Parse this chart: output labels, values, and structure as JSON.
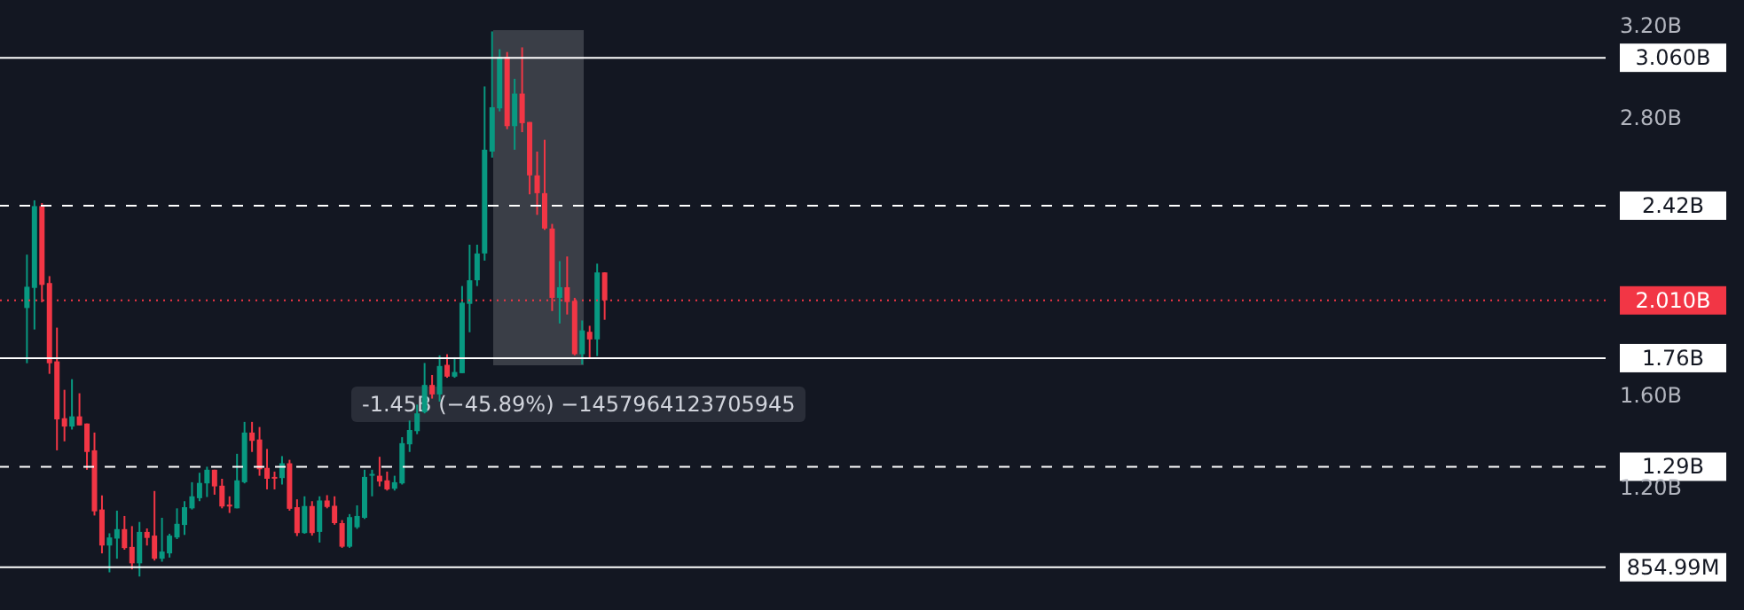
{
  "chart_data": {
    "type": "candlestick",
    "categories": [
      null,
      null,
      null,
      null,
      null,
      null,
      null,
      null,
      null,
      null,
      null,
      null,
      null,
      null,
      null,
      null,
      null,
      null,
      null,
      null,
      null,
      null,
      null,
      null,
      null,
      null,
      null,
      null,
      null,
      null,
      null,
      null,
      null,
      null,
      null,
      null,
      null,
      null,
      null,
      null,
      null,
      null,
      null,
      null,
      null,
      null,
      null,
      null,
      null,
      null,
      null,
      null,
      null,
      null,
      null,
      null,
      null,
      null,
      null,
      null,
      null,
      null,
      null,
      null,
      null,
      null,
      null,
      null,
      null,
      null,
      null,
      null,
      null,
      null,
      null,
      null,
      null,
      null,
      null,
      null,
      null,
      null,
      null,
      null,
      null,
      null,
      null,
      null,
      null,
      null,
      null,
      null,
      null,
      null,
      null,
      null,
      null,
      null,
      null,
      null,
      null,
      null,
      null,
      null,
      null,
      null,
      null,
      null,
      null,
      null,
      null,
      null,
      null,
      null,
      null,
      null,
      null,
      null,
      null,
      null,
      null,
      null,
      null,
      null,
      null,
      null,
      null,
      null,
      null,
      null,
      null,
      null,
      null,
      null,
      null,
      null,
      null,
      null,
      null,
      null,
      null,
      null,
      null,
      null,
      null,
      null,
      null,
      null,
      null,
      null,
      null,
      null,
      null,
      null,
      null,
      null,
      null,
      null,
      null,
      null,
      null,
      null,
      null,
      null,
      null,
      null,
      null,
      null,
      null,
      null,
      null,
      null,
      null,
      null,
      null,
      null,
      null,
      null,
      null,
      null,
      null,
      null,
      null,
      null,
      null,
      null,
      null,
      null,
      null,
      null,
      null,
      null,
      null,
      null,
      null,
      null,
      null,
      null,
      null,
      null,
      null,
      null,
      null,
      null,
      null,
      null,
      null,
      null,
      null,
      null,
      null,
      null,
      null,
      null
    ],
    "ohlc": [
      null,
      null,
      null,
      [
        1.977,
        2.208,
        1.738,
        2.069
      ],
      [
        2.064,
        2.443,
        1.884,
        2.418
      ],
      [
        2.418,
        2.431,
        2.002,
        2.077
      ],
      [
        2.085,
        2.115,
        1.692,
        1.738
      ],
      [
        1.746,
        1.892,
        1.361,
        1.495
      ],
      [
        1.5,
        1.623,
        1.4,
        1.464
      ],
      [
        1.464,
        1.669,
        1.451,
        1.508
      ],
      [
        1.508,
        1.608,
        1.469,
        1.469
      ],
      [
        1.477,
        1.477,
        1.277,
        1.354
      ],
      [
        1.361,
        1.438,
        1.079,
        1.097
      ],
      [
        1.105,
        1.166,
        0.915,
        0.949
      ],
      [
        0.949,
        1.002,
        0.833,
        0.984
      ],
      [
        0.979,
        1.1,
        0.892,
        1.02
      ],
      [
        1.02,
        1.077,
        0.931,
        0.938
      ],
      [
        0.943,
        1.033,
        0.846,
        0.872
      ],
      [
        0.872,
        1.051,
        0.815,
        1.008
      ],
      [
        1.008,
        1.023,
        0.949,
        0.982
      ],
      [
        0.992,
        1.185,
        0.884,
        0.892
      ],
      [
        0.892,
        1.069,
        0.879,
        0.923
      ],
      [
        0.915,
        1.0,
        0.897,
        0.992
      ],
      [
        0.984,
        1.11,
        0.977,
        1.043
      ],
      [
        1.038,
        1.141,
        0.995,
        1.115
      ],
      [
        1.11,
        1.223,
        1.105,
        1.162
      ],
      [
        1.154,
        1.264,
        1.141,
        1.22
      ],
      [
        1.218,
        1.29,
        1.159,
        1.277
      ],
      [
        1.277,
        1.277,
        1.169,
        1.205
      ],
      [
        1.208,
        1.238,
        1.11,
        1.118
      ],
      [
        1.126,
        1.162,
        1.09,
        1.118
      ],
      [
        1.11,
        1.346,
        1.11,
        1.231
      ],
      [
        1.223,
        1.484,
        1.218,
        1.438
      ],
      [
        1.438,
        1.484,
        1.354,
        1.402
      ],
      [
        1.408,
        1.462,
        1.251,
        1.279
      ],
      [
        1.285,
        1.367,
        1.192,
        1.238
      ],
      [
        1.246,
        1.269,
        1.192,
        1.241
      ],
      [
        1.241,
        1.336,
        1.213,
        1.305
      ],
      [
        1.305,
        1.32,
        1.1,
        1.108
      ],
      [
        1.115,
        1.149,
        0.99,
        1.003
      ],
      [
        1.003,
        1.162,
        1.0,
        1.12
      ],
      [
        1.12,
        1.141,
        0.992,
        1.003
      ],
      [
        1.008,
        1.162,
        0.962,
        1.144
      ],
      [
        1.144,
        1.167,
        1.11,
        1.116
      ],
      [
        1.121,
        1.162,
        1.039,
        1.046
      ],
      [
        1.046,
        1.059,
        0.939,
        0.944
      ],
      [
        0.944,
        1.085,
        0.939,
        1.072
      ],
      [
        1.028,
        1.123,
        1.021,
        1.077
      ],
      [
        1.069,
        1.277,
        1.064,
        1.246
      ],
      [
        1.251,
        1.277,
        1.162,
        1.259
      ],
      [
        1.251,
        1.333,
        1.205,
        1.226
      ],
      [
        1.231,
        1.269,
        1.187,
        1.192
      ],
      [
        1.195,
        1.251,
        1.187,
        1.223
      ],
      [
        1.218,
        1.418,
        1.213,
        1.392
      ],
      [
        1.387,
        1.49,
        1.354,
        1.449
      ],
      [
        1.444,
        1.559,
        1.431,
        1.521
      ],
      [
        1.526,
        1.739,
        1.521,
        1.644
      ],
      [
        1.644,
        1.687,
        1.585,
        1.603
      ],
      [
        1.603,
        1.772,
        1.572,
        1.726
      ],
      [
        1.731,
        1.777,
        1.675,
        1.68
      ],
      [
        1.68,
        1.764,
        1.675,
        1.7
      ],
      [
        1.695,
        2.072,
        1.695,
        2.0
      ],
      [
        1.995,
        2.251,
        1.872,
        2.097
      ],
      [
        2.097,
        2.251,
        2.072,
        2.213
      ],
      [
        2.213,
        2.936,
        2.182,
        2.662
      ],
      [
        2.654,
        3.174,
        2.628,
        2.846
      ],
      [
        2.841,
        3.097,
        2.828,
        3.064
      ],
      [
        3.064,
        3.085,
        2.751,
        2.764
      ],
      [
        2.764,
        2.969,
        2.662,
        2.905
      ],
      [
        2.905,
        3.105,
        2.738,
        2.777
      ],
      [
        2.782,
        2.782,
        2.469,
        2.551
      ],
      [
        2.551,
        2.654,
        2.38,
        2.474
      ],
      [
        2.474,
        2.705,
        2.315,
        2.321
      ],
      [
        2.321,
        2.341,
        1.964,
        2.021
      ],
      [
        2.021,
        2.18,
        1.91,
        2.067
      ],
      [
        2.067,
        2.2,
        1.949,
        2.003
      ],
      [
        2.008,
        2.021,
        1.772,
        1.777
      ],
      [
        1.777,
        1.923,
        1.733,
        1.88
      ],
      [
        1.874,
        1.9,
        1.756,
        1.841
      ],
      [
        1.841,
        2.169,
        1.769,
        2.131
      ],
      [
        2.131,
        2.131,
        1.926,
        2.01
      ],
      null,
      null,
      null,
      null,
      null,
      null,
      null,
      null,
      null,
      null,
      null,
      null,
      null,
      null,
      null,
      null,
      null,
      null,
      null,
      null,
      null,
      null,
      null,
      null,
      null,
      null,
      null,
      null,
      null,
      null,
      null,
      null,
      null,
      null,
      null,
      null,
      null,
      null,
      null,
      null,
      null,
      null,
      null,
      null,
      null,
      null,
      null,
      null,
      null,
      null,
      null,
      null,
      null,
      null,
      null,
      null,
      null,
      null,
      null,
      null,
      null,
      null,
      null,
      null,
      null,
      null,
      null,
      null,
      null,
      null,
      null,
      null,
      null,
      null,
      null,
      null,
      null,
      null,
      null,
      null,
      null,
      null,
      null,
      null,
      null,
      null,
      null,
      null,
      null,
      null,
      null,
      null,
      null,
      null,
      null,
      null,
      null,
      null,
      null,
      null,
      null,
      null,
      null,
      null,
      null,
      null,
      null,
      null,
      null,
      null,
      null,
      null,
      null,
      null,
      null,
      null,
      null,
      null,
      null,
      null,
      null,
      null,
      null,
      null,
      null,
      null,
      null,
      null,
      null,
      null,
      null,
      null,
      null
    ],
    "colors": [
      null,
      null,
      null,
      "#089981",
      "#089981",
      "#f23645",
      "#f23645",
      "#f23645",
      "#f23645",
      "#089981",
      "#f23645",
      "#f23645",
      "#f23645",
      "#f23645",
      "#089981",
      "#089981",
      "#f23645",
      "#f23645",
      "#089981",
      "#f23645",
      "#f23645",
      "#089981",
      "#089981",
      "#089981",
      "#089981",
      "#089981",
      "#089981",
      "#089981",
      "#f23645",
      "#f23645",
      "#f23645",
      "#089981",
      "#089981",
      "#f23645",
      "#f23645",
      "#f23645",
      "#f23645",
      "#089981",
      "#f23645",
      "#f23645",
      "#089981",
      "#f23645",
      "#089981",
      "#f23645",
      "#f23645",
      "#f23645",
      "#089981",
      "#089981",
      "#089981",
      "#089981",
      "#f23645",
      "#f23645",
      "#089981",
      "#089981",
      "#089981",
      "#089981",
      "#089981",
      "#f23645",
      "#089981",
      "#f23645",
      "#089981",
      "#089981",
      "#089981",
      "#089981",
      "#089981",
      "#089981",
      "#089981",
      "#f23645",
      "#089981",
      "#f23645",
      "#f23645",
      "#f23645",
      "#f23645",
      "#f23645",
      "#089981",
      "#f23645",
      "#f23645",
      "#089981",
      "#f23645",
      "#089981",
      "#f23645",
      null,
      null,
      null,
      null,
      null,
      null,
      null,
      null,
      null,
      null,
      null,
      null,
      null,
      null,
      null,
      null,
      null,
      null,
      null,
      null,
      null,
      null,
      null,
      null,
      null,
      null,
      null,
      null,
      null,
      null,
      null,
      null,
      null,
      null,
      null,
      null,
      null,
      null,
      null,
      null,
      null,
      null,
      null,
      null,
      null,
      null,
      null,
      null,
      null,
      null,
      null,
      null,
      null,
      null,
      null,
      null,
      null,
      null,
      null,
      null,
      null,
      null,
      null,
      null,
      null,
      null,
      null,
      null,
      null,
      null,
      null,
      null,
      null,
      null,
      null,
      null,
      null,
      null,
      null,
      null,
      null,
      null,
      null,
      null,
      null,
      null,
      null,
      null,
      null,
      null,
      null,
      null,
      null,
      null,
      null,
      null,
      null,
      null,
      null,
      null,
      null,
      null,
      null,
      null,
      null,
      null,
      null,
      null,
      null,
      null,
      null,
      null,
      null,
      null,
      null,
      null,
      null,
      null,
      null,
      null,
      null,
      null,
      null,
      null,
      null,
      null,
      null,
      null,
      null,
      null,
      null,
      null,
      null
    ],
    "ylim": [
      0.67,
      3.31
    ],
    "yticks": [
      {
        "value": 3.2,
        "label": "3.20B"
      },
      {
        "value": 2.8,
        "label": "2.80B"
      },
      {
        "value": 1.6,
        "label": "1.60B"
      },
      {
        "value": 1.2,
        "label": "1.20B"
      }
    ],
    "tick_labels": "y",
    "ref_lines": [
      {
        "axis": "y",
        "value": 3.06,
        "label": "3.060B",
        "color": "#ffffff",
        "line_style": "solid"
      },
      {
        "axis": "y",
        "value": 2.42,
        "label": "2.42B",
        "color": "#ffffff",
        "line_style": "dashed"
      },
      {
        "axis": "y",
        "value": 2.01,
        "label": "2.010B",
        "color": "#f23645",
        "line_style": "dotted"
      },
      {
        "axis": "y",
        "value": 1.76,
        "label": "1.76B",
        "color": "#ffffff",
        "line_style": "solid"
      },
      {
        "axis": "y",
        "value": 1.29,
        "label": "1.29B",
        "color": "#ffffff",
        "line_style": "dashed"
      },
      {
        "axis": "y",
        "value": 0.85499,
        "label": "854.99M",
        "color": "#ffffff",
        "line_style": "solid"
      }
    ],
    "annotations": [
      "-1.45B (−45.89%) −1457964123705945"
    ]
  }
}
